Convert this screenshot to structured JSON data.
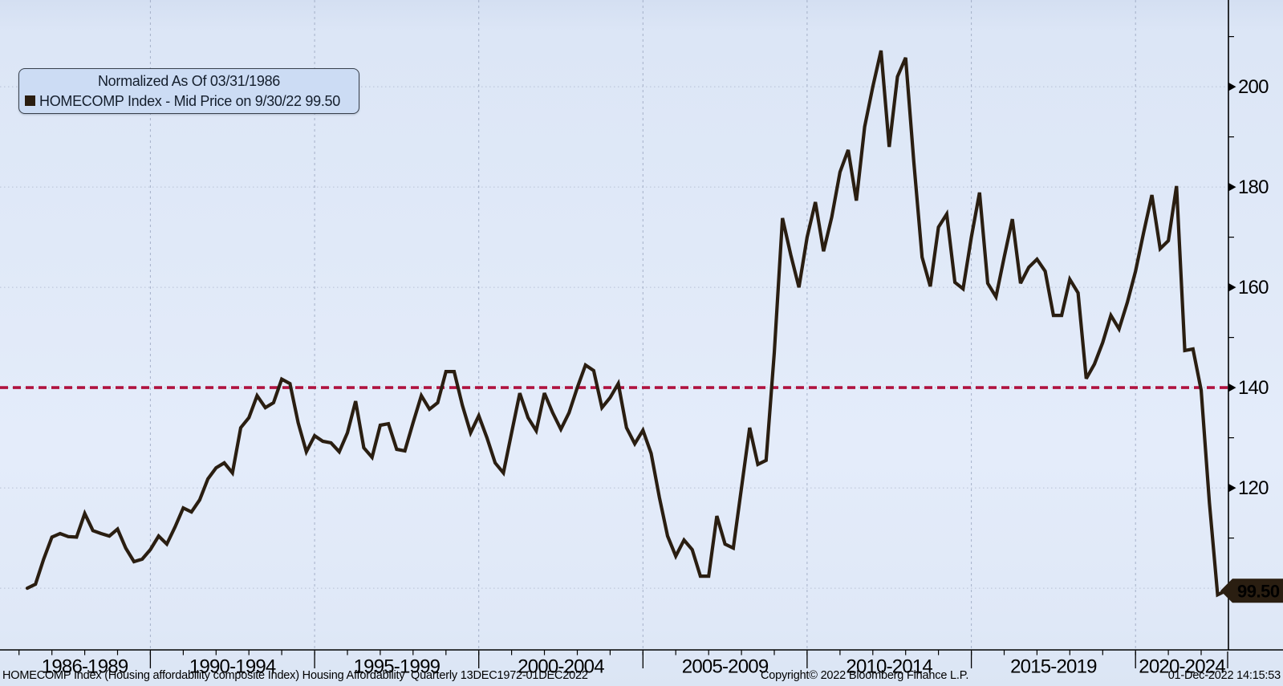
{
  "legend": {
    "title": "Normalized As Of 03/31/1986",
    "series_label": "HOMECOMP Index - Mid Price on 9/30/22 99.50"
  },
  "status_bar": {
    "left": "HOMECOMP Index (Housing affordability composite Index) Housing Affordability  Quarterly 13DEC1972-01DEC2022",
    "center": "Copyright© 2022 Bloomberg Finance L.P.",
    "right": "01-Dec-2022 14:15:53"
  },
  "colors": {
    "background": "#dfe8f7",
    "line": "#2a1e11",
    "threshold": "#b0123f",
    "grid_vertical": "#9fabc4",
    "grid_horizontal": "#b6c0d4",
    "axis": "#000000",
    "legend_bg": "#ccdcf4",
    "legend_border": "#38404c",
    "legend_text": "#141e2c",
    "tag_bg": "#2a1e11",
    "tag_text": "#ffffff"
  },
  "chart_data": {
    "type": "line",
    "title": "HOMECOMP Index (Housing affordability composite Index)",
    "normalized_as_of": "03/31/1986",
    "frequency": "Quarterly",
    "full_data_range": "13DEC1972-01DEC2022",
    "x_range_visible": [
      1985.42,
      2022.83
    ],
    "y_range_visible": [
      87.7,
      217.3
    ],
    "grid": true,
    "legend_position": "top-left",
    "x_axis": {
      "sections": [
        {
          "label": "1986-1989",
          "start": 1986,
          "end": 1990
        },
        {
          "label": "1990-1994",
          "start": 1990,
          "end": 1995
        },
        {
          "label": "1995-1999",
          "start": 1995,
          "end": 2000
        },
        {
          "label": "2000-2004",
          "start": 2000,
          "end": 2005
        },
        {
          "label": "2005-2009",
          "start": 2005,
          "end": 2010
        },
        {
          "label": "2010-2014",
          "start": 2010,
          "end": 2015
        },
        {
          "label": "2015-2019",
          "start": 2015,
          "end": 2020
        },
        {
          "label": "2020-2024",
          "start": 2020,
          "end": 2025
        }
      ]
    },
    "y_axis": {
      "labeled_ticks": [
        120,
        140,
        160,
        180,
        200
      ],
      "minor_ticks": [
        110,
        130,
        150,
        170,
        190,
        210
      ],
      "gridlines": [
        100,
        120,
        140,
        160,
        180,
        200
      ]
    },
    "threshold_line": {
      "value": 140,
      "style": "dashed"
    },
    "last_point": {
      "date": "9/30/22",
      "value": 99.5,
      "label": "99.50"
    },
    "series": [
      {
        "name": "HOMECOMP Index - Mid Price",
        "x_start": 1986.25,
        "x_step": 0.25,
        "values": [
          100.0,
          100.8,
          105.8,
          110.2,
          110.9,
          110.3,
          110.2,
          114.9,
          111.5,
          110.9,
          110.4,
          111.8,
          108.0,
          105.3,
          105.8,
          107.7,
          110.4,
          108.8,
          112.2,
          116.0,
          115.2,
          117.6,
          121.8,
          124.0,
          125.0,
          123.0,
          132.0,
          134.0,
          138.4,
          136.0,
          137.0,
          141.7,
          140.8,
          133.0,
          127.2,
          130.4,
          129.3,
          129.0,
          127.2,
          131.0,
          137.3,
          128.0,
          126.1,
          132.5,
          132.8,
          127.7,
          127.4,
          133.0,
          138.4,
          135.7,
          137.0,
          143.2,
          143.2,
          136.5,
          131.0,
          134.4,
          130.0,
          125.0,
          123.0,
          131.0,
          138.9,
          134.0,
          131.4,
          138.9,
          135.0,
          131.7,
          135.0,
          140.0,
          144.5,
          143.4,
          136.0,
          138.0,
          140.8,
          132.0,
          128.8,
          131.5,
          126.9,
          118.1,
          110.4,
          106.4,
          109.6,
          107.7,
          102.4,
          102.4,
          114.4,
          108.8,
          108.0,
          120.0,
          132.0,
          124.7,
          125.5,
          147.0,
          173.8,
          166.5,
          160.0,
          170.0,
          177.0,
          167.2,
          174.0,
          183.0,
          187.4,
          177.3,
          192.0,
          200.0,
          207.2,
          188.0,
          202.0,
          205.8,
          185.0,
          166.0,
          160.2,
          172.0,
          174.6,
          161.0,
          159.7,
          170.0,
          178.9,
          160.8,
          158.1,
          166.0,
          173.6,
          160.8,
          164.0,
          165.6,
          163.2,
          154.4,
          154.4,
          161.6,
          158.9,
          141.8,
          144.7,
          149.0,
          154.4,
          151.7,
          157.0,
          163.2,
          171.0,
          178.4,
          167.7,
          169.3,
          180.2,
          147.4,
          147.7,
          139.5,
          117.0,
          98.7,
          99.5
        ]
      }
    ]
  }
}
